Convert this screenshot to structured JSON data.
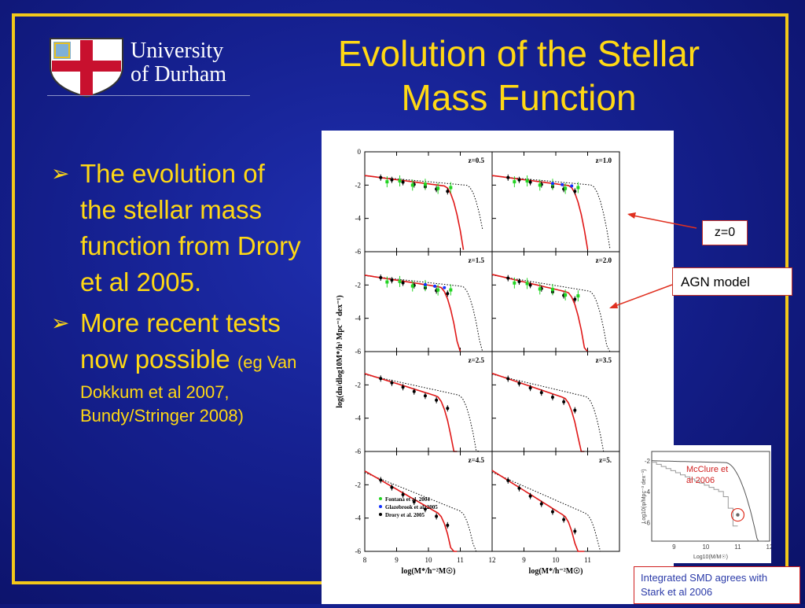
{
  "logo": {
    "line1": "University",
    "line2": "of Durham"
  },
  "title": {
    "line1": "Evolution of the Stellar",
    "line2": "Mass Function"
  },
  "bullets": [
    {
      "text": "The evolution of the stellar mass function from Drory et al 2005."
    },
    {
      "text": "More recent tests now possible",
      "small": "(eg Van",
      "cite_line1": "Dokkum et al 2007,",
      "cite_line2": "Bundy/Stringer 2008)"
    }
  ],
  "callouts": {
    "z0": "z=0",
    "agn": "AGN model",
    "mcclure_line1": "McClure et",
    "mcclure_line2": "al 2006",
    "stark_line1": "Integrated SMD agrees with",
    "stark_line2": "Stark et al 2006"
  },
  "chart_data": [
    {
      "type": "line",
      "panels": [
        "z=0.5",
        "z=1.0",
        "z=1.5",
        "z=2.0",
        "z=2.5",
        "z=3.5",
        "z=4.5",
        "z=5."
      ],
      "xlabel": "log(M*/h⁻²M☉)",
      "ylabel": "log(dn/dlog10M*/h³ Mpc⁻³ dex⁻¹)",
      "xlim": [
        8,
        12
      ],
      "ylim": [
        -6,
        0
      ],
      "x_ticks": [
        "8",
        "9",
        "10",
        "11",
        "12"
      ],
      "x_ticks_right": [
        "9",
        "10",
        "11"
      ],
      "y_ticks": [
        "0",
        "-2",
        "-4",
        "-6"
      ],
      "legend": [
        "Fontana et al. 2004",
        "Glazebrook et al. 2005",
        "Drory et al. 2005"
      ],
      "colors": {
        "model": "#e01818",
        "fontana": "#22d422",
        "glazebrook": "#1030ff",
        "drory": "#000000"
      }
    },
    {
      "type": "line",
      "xlabel": "Log10(M/M☉)",
      "ylabel": "Log10(φ/Mpc⁻³ dex⁻¹)",
      "x_ticks": [
        "9",
        "10",
        "11",
        "12"
      ],
      "y_ticks": [
        "-2",
        "-4",
        "-6"
      ]
    }
  ]
}
